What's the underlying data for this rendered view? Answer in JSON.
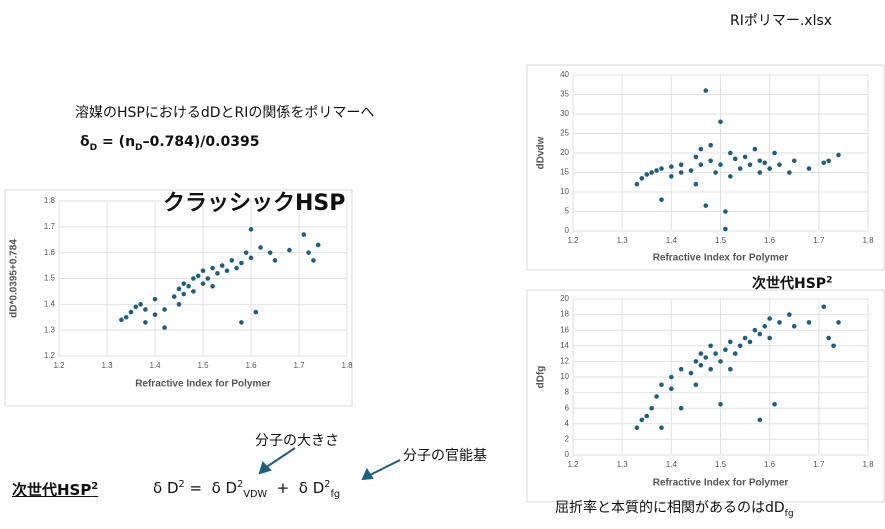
{
  "slide": {
    "file_name": "RIポリマー.xlsx",
    "heading": "溶媒のHSPにおけるdDとRIの関係をポリマーへ",
    "formula": [
      "δ",
      "D",
      " = (",
      "n",
      "D",
      "–0.784)/0.0395"
    ],
    "classic_label": "クラッシックHSP",
    "next_gen_label": [
      "次世代HSP",
      "2"
    ],
    "equation": {
      "title": [
        "次世代HSP",
        "2"
      ],
      "parts": [
        "δ D",
        "2",
        " =  δ D",
        "2",
        "VDW",
        "  +  δ D",
        "2",
        "fg"
      ]
    },
    "note_size": "分子の大きさ",
    "note_functional": "分子の官能基",
    "conclusion": [
      "屈折率と本質的に相関があるのはdD",
      "fg"
    ]
  },
  "chart_data": [
    {
      "type": "scatter",
      "x_label": "Refractive Index for Polymer",
      "y_label": "dD*0.0395+0.784",
      "color": "#1d5f7e",
      "grid": true,
      "xlim": [
        1.2,
        1.8
      ],
      "xticks": [
        1.2,
        1.3,
        1.4,
        1.5,
        1.6,
        1.7,
        1.8
      ],
      "ylim": [
        1.2,
        1.8
      ],
      "yticks": [
        1.2,
        1.3,
        1.4,
        1.5,
        1.6,
        1.7,
        1.8
      ],
      "x": [
        1.33,
        1.34,
        1.35,
        1.36,
        1.37,
        1.38,
        1.38,
        1.4,
        1.4,
        1.42,
        1.42,
        1.44,
        1.45,
        1.45,
        1.46,
        1.46,
        1.47,
        1.48,
        1.48,
        1.49,
        1.5,
        1.5,
        1.51,
        1.52,
        1.52,
        1.53,
        1.54,
        1.55,
        1.56,
        1.57,
        1.58,
        1.58,
        1.59,
        1.6,
        1.6,
        1.61,
        1.62,
        1.64,
        1.65,
        1.68,
        1.71,
        1.72,
        1.73,
        1.74
      ],
      "values": [
        1.34,
        1.35,
        1.37,
        1.39,
        1.4,
        1.38,
        1.33,
        1.36,
        1.42,
        1.31,
        1.38,
        1.43,
        1.46,
        1.4,
        1.48,
        1.44,
        1.47,
        1.5,
        1.45,
        1.51,
        1.48,
        1.53,
        1.5,
        1.54,
        1.47,
        1.52,
        1.55,
        1.53,
        1.57,
        1.54,
        1.56,
        1.33,
        1.6,
        1.58,
        1.69,
        1.37,
        1.62,
        1.6,
        1.57,
        1.61,
        1.67,
        1.6,
        1.57,
        1.63
      ]
    },
    {
      "type": "scatter",
      "x_label": "Refractive Index for Polymer",
      "y_label": "dDvdw",
      "color": "#1d5f7e",
      "grid": true,
      "xlim": [
        1.2,
        1.8
      ],
      "xticks": [
        1.2,
        1.3,
        1.4,
        1.5,
        1.6,
        1.7,
        1.8
      ],
      "ylim": [
        0,
        40
      ],
      "yticks": [
        0,
        5,
        10,
        15,
        20,
        25,
        30,
        35,
        40
      ],
      "x": [
        1.33,
        1.34,
        1.35,
        1.36,
        1.37,
        1.38,
        1.38,
        1.4,
        1.4,
        1.42,
        1.42,
        1.44,
        1.45,
        1.45,
        1.46,
        1.46,
        1.47,
        1.47,
        1.48,
        1.48,
        1.49,
        1.5,
        1.5,
        1.51,
        1.51,
        1.52,
        1.52,
        1.53,
        1.54,
        1.55,
        1.56,
        1.57,
        1.58,
        1.58,
        1.59,
        1.6,
        1.61,
        1.62,
        1.64,
        1.65,
        1.68,
        1.71,
        1.72,
        1.74
      ],
      "values": [
        12,
        13.5,
        14.5,
        15,
        15.5,
        8,
        16,
        14,
        16.5,
        15,
        17,
        15.5,
        19,
        12,
        17,
        21,
        36,
        6.5,
        18,
        22,
        15,
        28,
        17,
        0.5,
        5,
        20,
        14,
        18.5,
        16,
        19,
        17,
        21,
        15,
        18,
        17.5,
        16,
        20,
        17,
        15,
        18,
        16,
        17.5,
        18,
        19.5
      ]
    },
    {
      "type": "scatter",
      "x_label": "Refractive Index for Polymer",
      "y_label": "dDfg",
      "color": "#1d5f7e",
      "grid": true,
      "xlim": [
        1.2,
        1.8
      ],
      "xticks": [
        1.2,
        1.3,
        1.4,
        1.5,
        1.6,
        1.7,
        1.8
      ],
      "ylim": [
        0,
        20
      ],
      "yticks": [
        0,
        2,
        4,
        6,
        8,
        10,
        12,
        14,
        16,
        18,
        20
      ],
      "x": [
        1.33,
        1.34,
        1.35,
        1.36,
        1.37,
        1.38,
        1.38,
        1.4,
        1.4,
        1.42,
        1.42,
        1.44,
        1.45,
        1.45,
        1.46,
        1.46,
        1.47,
        1.48,
        1.48,
        1.49,
        1.5,
        1.5,
        1.51,
        1.52,
        1.52,
        1.53,
        1.54,
        1.55,
        1.56,
        1.57,
        1.58,
        1.58,
        1.59,
        1.6,
        1.6,
        1.61,
        1.62,
        1.64,
        1.65,
        1.68,
        1.71,
        1.72,
        1.73,
        1.74
      ],
      "values": [
        3.5,
        4.5,
        5,
        6,
        7.5,
        3.5,
        9,
        8.5,
        10,
        6,
        11,
        10.5,
        12,
        9,
        13,
        11.5,
        12.5,
        11,
        14,
        13,
        6.5,
        12,
        13.5,
        14.5,
        11,
        13,
        14,
        15,
        14.5,
        16,
        15.5,
        4.5,
        16.5,
        15,
        17.5,
        6.5,
        17,
        18,
        16.5,
        17,
        19,
        15,
        14,
        17
      ]
    }
  ]
}
